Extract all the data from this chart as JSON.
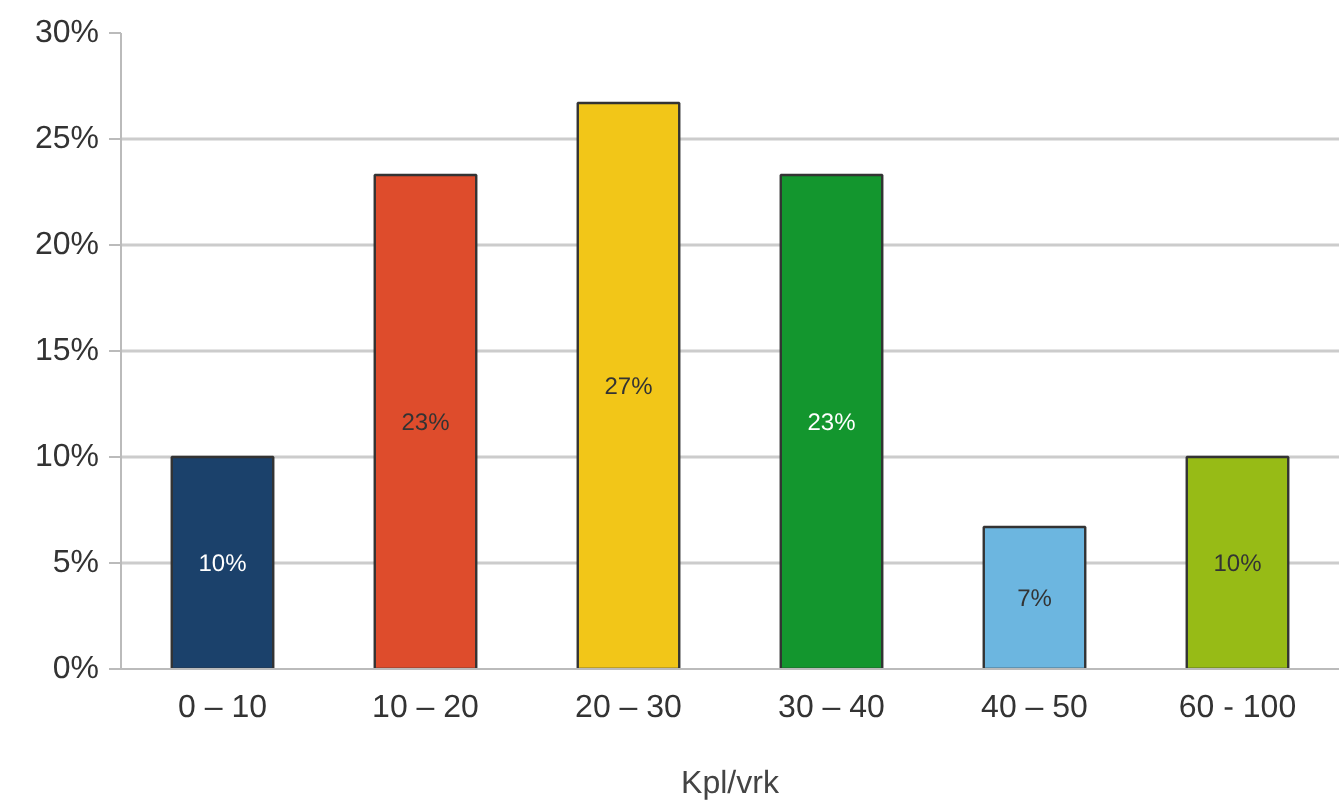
{
  "chart_data": {
    "type": "bar",
    "xlabel": "Kpl/vrk",
    "categories": [
      "0 – 10",
      "10 – 20",
      "20 – 30",
      "30 – 40",
      "40 – 50",
      "60 - 100"
    ],
    "values": [
      10,
      23.3,
      26.7,
      23.3,
      6.7,
      10
    ],
    "colors": [
      "#1b416b",
      "#de4c2c",
      "#f2c618",
      "#13962e",
      "#6cb6e0",
      "#97bb16"
    ],
    "value_labels": [
      "10%",
      "23%",
      "27%",
      "23%",
      "7%",
      "10%"
    ],
    "ylim": [
      0,
      30
    ],
    "yticks": [
      {
        "value": 0,
        "label": "0%"
      },
      {
        "value": 5,
        "label": "5%"
      },
      {
        "value": 10,
        "label": "10%"
      },
      {
        "value": 15,
        "label": "15%"
      },
      {
        "value": 20,
        "label": "20%"
      },
      {
        "value": 25,
        "label": "25%"
      },
      {
        "value": 30,
        "label": "30%"
      }
    ],
    "grid": "y"
  }
}
